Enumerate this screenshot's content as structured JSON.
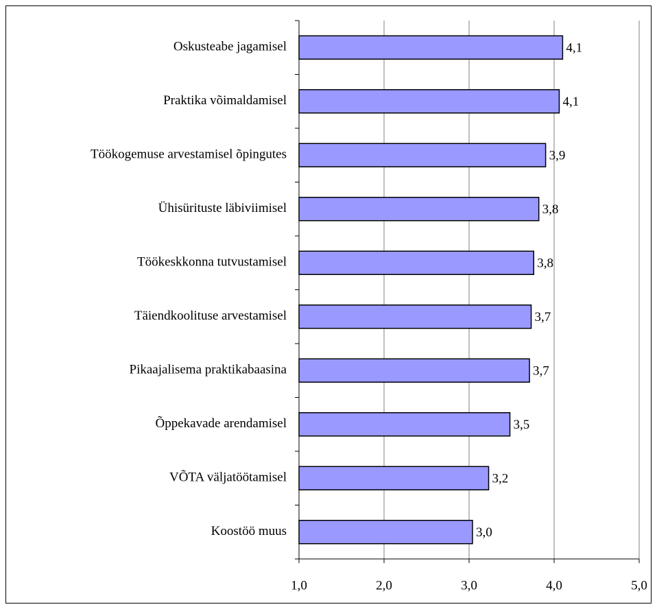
{
  "chart_data": {
    "type": "hbar",
    "categories": [
      "Oskusteabe jagamisel",
      "Praktika võimaldamisel",
      "Töökogemuse arvestamisel õpingutes",
      "Ühisürituste läbiviimisel",
      "Töökeskkonna tutvustamisel",
      "Täiendkoolituse arvestamisel",
      "Pikaajalisema praktikabaasina",
      "Õppekavade arendamisel",
      "VÕTA väljatöötamisel",
      "Koostöö muus"
    ],
    "values": [
      4.1,
      4.06,
      3.9,
      3.82,
      3.76,
      3.73,
      3.71,
      3.48,
      3.23,
      3.04
    ],
    "value_labels": [
      "4,1",
      "4,1",
      "3,9",
      "3,8",
      "3,8",
      "3,7",
      "3,7",
      "3,5",
      "3,2",
      "3,0"
    ],
    "color": "#9999ff",
    "xlim": [
      1,
      5
    ],
    "xticks": [
      {
        "value": 1,
        "label": "1,0"
      },
      {
        "value": 2,
        "label": "2,0"
      },
      {
        "value": 3,
        "label": "3,0"
      },
      {
        "value": 4,
        "label": "4,0"
      },
      {
        "value": 5,
        "label": "5,0"
      }
    ],
    "grid": true
  }
}
